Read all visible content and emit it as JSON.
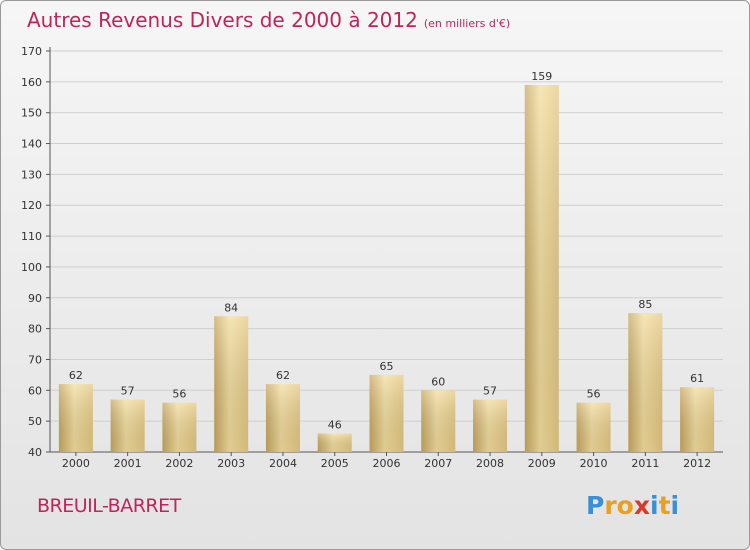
{
  "title": "Autres Revenus Divers de 2000 à 2012",
  "subtitle": "(en milliers d'€)",
  "place": "BREUIL-BARRET",
  "logo": {
    "letters": [
      "P",
      "r",
      "o",
      "x",
      "i",
      "t",
      "i"
    ],
    "colors": [
      "#3a8fd6",
      "#e8a020",
      "#e8a020",
      "#d83a2a",
      "#3a8fd6",
      "#e8a020",
      "#3a8fd6"
    ]
  },
  "colors": {
    "title": "#c0245b",
    "bar_light": "#f4de9e",
    "bar_dark": "#c8a862"
  },
  "chart_data": {
    "type": "bar",
    "categories": [
      "2000",
      "2001",
      "2002",
      "2003",
      "2004",
      "2005",
      "2006",
      "2007",
      "2008",
      "2009",
      "2010",
      "2011",
      "2012"
    ],
    "values": [
      62,
      57,
      56,
      84,
      62,
      46,
      65,
      60,
      57,
      159,
      56,
      85,
      61
    ],
    "ylim": [
      40,
      170
    ],
    "yticks": [
      40,
      50,
      60,
      70,
      80,
      90,
      100,
      110,
      120,
      130,
      140,
      150,
      160,
      170
    ],
    "grid": true
  }
}
